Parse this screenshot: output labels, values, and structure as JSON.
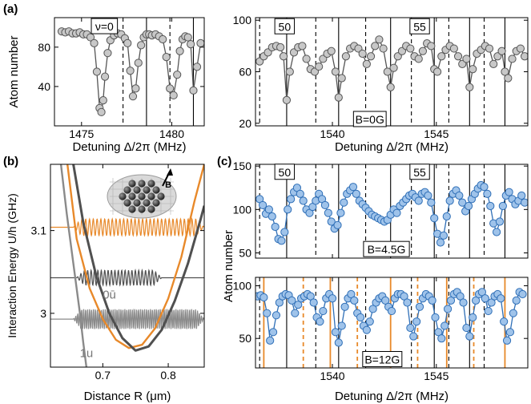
{
  "panel_labels": {
    "a": "(a)",
    "b": "(b)",
    "c": "(c)"
  },
  "colors": {
    "gray_marker": "#c8c8c8",
    "blue_marker": "#9fc3ea",
    "blue_line": "#2f6fb7",
    "orange": "#e8892a",
    "dark_curve": "#505050",
    "mid_curve": "#8a8a8a"
  },
  "chart_data": [
    {
      "id": "a_left",
      "type": "scatter",
      "xlim": [
        1473.5,
        1481.8
      ],
      "ylim": [
        0,
        110
      ],
      "xticks": [
        1475,
        1480
      ],
      "yticks": [
        40,
        80
      ],
      "ylabel": "Atom number",
      "xlabel": "Detuning Δ/2π (MHz)",
      "annotations": [
        {
          "text": "ν=0",
          "x": 1476.0,
          "y": 101
        }
      ],
      "solid_lines": [
        1478.6,
        1481.2
      ],
      "dashed_lines": [
        1477.3,
        1479.9
      ],
      "x": [
        1473.9,
        1474.1,
        1474.3,
        1474.5,
        1474.7,
        1474.9,
        1475.1,
        1475.3,
        1475.5,
        1475.7,
        1475.85,
        1476.0,
        1476.1,
        1476.2,
        1476.3,
        1476.45,
        1476.6,
        1476.8,
        1477.0,
        1477.2,
        1477.4,
        1477.55,
        1477.7,
        1477.85,
        1478.0,
        1478.15,
        1478.3,
        1478.45,
        1478.6,
        1478.75,
        1478.9,
        1479.1,
        1479.3,
        1479.5,
        1479.7,
        1479.9,
        1480.1,
        1480.3,
        1480.45,
        1480.6,
        1480.75,
        1480.9,
        1481.05,
        1481.2,
        1481.4,
        1481.6
      ],
      "y": [
        96,
        95,
        96,
        94,
        94,
        95,
        93,
        93,
        90,
        84,
        55,
        18,
        14,
        26,
        50,
        74,
        87,
        92,
        94,
        93,
        89,
        84,
        56,
        30,
        38,
        64,
        82,
        90,
        93,
        93,
        92,
        93,
        91,
        88,
        70,
        38,
        31,
        52,
        76,
        88,
        91,
        90,
        83,
        36,
        60,
        84
      ]
    },
    {
      "id": "a_right",
      "type": "scatter",
      "xlim": [
        1536.3,
        1549.4
      ],
      "ylim": [
        18,
        102
      ],
      "xticks": [
        1540,
        1545
      ],
      "yticks": [
        20,
        60,
        100
      ],
      "xlabel": "Detuning Δ/2π (MHz)",
      "annotations": [
        {
          "text": "50",
          "x": 1537.7,
          "y": 95,
          "boxed": true
        },
        {
          "text": "55",
          "x": 1544.2,
          "y": 95,
          "boxed": true
        },
        {
          "text": "B=0G",
          "x": 1541.8,
          "y": 23,
          "boxed": true
        }
      ],
      "solid_lines": [
        1537.8,
        1540.3,
        1542.8,
        1544.9,
        1546.6,
        1548.3
      ],
      "dashed_lines": [
        1536.5,
        1539.2,
        1541.6,
        1543.8,
        1545.6,
        1547.3
      ],
      "x": [
        1536.5,
        1536.7,
        1536.9,
        1537.1,
        1537.3,
        1537.5,
        1537.65,
        1537.8,
        1537.95,
        1538.15,
        1538.35,
        1538.55,
        1538.75,
        1538.95,
        1539.15,
        1539.35,
        1539.55,
        1539.75,
        1539.95,
        1540.15,
        1540.3,
        1540.45,
        1540.65,
        1540.85,
        1541.05,
        1541.25,
        1541.45,
        1541.65,
        1541.85,
        1542.05,
        1542.25,
        1542.45,
        1542.65,
        1542.8,
        1542.95,
        1543.15,
        1543.35,
        1543.55,
        1543.75,
        1543.95,
        1544.15,
        1544.35,
        1544.55,
        1544.75,
        1544.9,
        1545.05,
        1545.25,
        1545.45,
        1545.65,
        1545.85,
        1546.05,
        1546.25,
        1546.45,
        1546.6,
        1546.75,
        1546.95,
        1547.15,
        1547.35,
        1547.55,
        1547.75,
        1547.95,
        1548.15,
        1548.3,
        1548.45,
        1548.65,
        1548.85,
        1549.05,
        1549.25
      ],
      "y": [
        68,
        72,
        75,
        79,
        80,
        79,
        72,
        38,
        60,
        75,
        79,
        80,
        70,
        62,
        60,
        64,
        70,
        74,
        76,
        60,
        40,
        55,
        72,
        78,
        80,
        78,
        74,
        66,
        72,
        80,
        85,
        78,
        60,
        48,
        63,
        72,
        76,
        80,
        78,
        72,
        70,
        76,
        82,
        80,
        62,
        60,
        72,
        77,
        80,
        78,
        72,
        66,
        70,
        48,
        62,
        74,
        77,
        80,
        78,
        66,
        72,
        76,
        60,
        55,
        70,
        76,
        78,
        72
      ]
    },
    {
      "id": "b",
      "type": "line",
      "xlim": [
        0.62,
        0.855
      ],
      "ylim": [
        2.935,
        3.18
      ],
      "xticks": [
        0.7,
        0.8
      ],
      "yticks": [
        3.0,
        3.1
      ],
      "ylabel": "Interaction Energy U/h (GHz)",
      "xlabel": "Distance R (μm)",
      "labels": [
        {
          "text": "0ū",
          "x": 0.71,
          "y": 3.018
        },
        {
          "text": "1u",
          "x": 0.675,
          "y": 2.947
        },
        {
          "text": "B",
          "x": 0.8,
          "y": 3.152
        }
      ],
      "levels": [
        3.104,
        3.043,
        2.993
      ],
      "series": [
        {
          "color": "orange",
          "x": [
            0.646,
            0.66,
            0.68,
            0.7,
            0.72,
            0.74,
            0.76,
            0.78,
            0.8,
            0.82,
            0.84,
            0.855
          ],
          "y": [
            3.18,
            3.09,
            3.03,
            2.993,
            2.968,
            2.958,
            2.962,
            2.982,
            3.018,
            3.068,
            3.135,
            3.18
          ]
        },
        {
          "color": "dark",
          "x": [
            0.655,
            0.67,
            0.69,
            0.71,
            0.73,
            0.75,
            0.77,
            0.79,
            0.81,
            0.83,
            0.85,
            0.855
          ],
          "y": [
            3.18,
            3.11,
            3.045,
            3.0,
            2.97,
            2.955,
            2.96,
            2.98,
            3.015,
            3.06,
            3.115,
            3.13
          ]
        },
        {
          "color": "gray",
          "x": [
            0.636,
            0.645,
            0.655,
            0.665,
            0.67,
            0.675
          ],
          "y": [
            3.18,
            3.12,
            3.06,
            3.0,
            2.965,
            2.935
          ]
        }
      ]
    },
    {
      "id": "c_top",
      "type": "line",
      "xlim": [
        1536.3,
        1549.4
      ],
      "ylim": [
        44,
        152
      ],
      "xticks": [
        1540,
        1545
      ],
      "yticks": [
        50,
        100,
        150
      ],
      "annotations": [
        {
          "text": "50",
          "x": 1537.7,
          "y": 143,
          "boxed": true
        },
        {
          "text": "55",
          "x": 1544.2,
          "y": 143,
          "boxed": true
        },
        {
          "text": "B=4.5G",
          "x": 1542.6,
          "y": 54,
          "boxed": true
        }
      ],
      "solid_lines": [
        1537.8,
        1540.3,
        1542.8,
        1544.9,
        1546.6,
        1548.3
      ],
      "dashed_lines": [
        1536.5,
        1539.2,
        1541.6,
        1543.8,
        1545.6,
        1547.3
      ],
      "x": [
        1536.5,
        1536.65,
        1536.8,
        1536.95,
        1537.1,
        1537.25,
        1537.4,
        1537.55,
        1537.7,
        1537.85,
        1538.0,
        1538.15,
        1538.3,
        1538.45,
        1538.6,
        1538.75,
        1538.9,
        1539.05,
        1539.2,
        1539.35,
        1539.5,
        1539.65,
        1539.8,
        1539.95,
        1540.1,
        1540.25,
        1540.4,
        1540.55,
        1540.7,
        1540.85,
        1541.0,
        1541.15,
        1541.3,
        1541.45,
        1541.6,
        1541.75,
        1541.9,
        1542.05,
        1542.2,
        1542.35,
        1542.5,
        1542.65,
        1542.8,
        1542.95,
        1543.1,
        1543.25,
        1543.4,
        1543.55,
        1543.7,
        1543.85,
        1544.0,
        1544.15,
        1544.3,
        1544.45,
        1544.6,
        1544.75,
        1544.9,
        1545.05,
        1545.2,
        1545.35,
        1545.5,
        1545.65,
        1545.8,
        1545.95,
        1546.1,
        1546.25,
        1546.4,
        1546.55,
        1546.7,
        1546.85,
        1547.0,
        1547.15,
        1547.3,
        1547.45,
        1547.6,
        1547.75,
        1547.9,
        1548.05,
        1548.2,
        1548.35,
        1548.5,
        1548.65,
        1548.8,
        1548.95,
        1549.1,
        1549.25
      ],
      "y": [
        112,
        105,
        95,
        100,
        92,
        80,
        66,
        64,
        74,
        100,
        112,
        120,
        125,
        118,
        110,
        100,
        96,
        103,
        110,
        118,
        112,
        105,
        96,
        86,
        78,
        82,
        96,
        108,
        118,
        122,
        126,
        118,
        110,
        106,
        102,
        98,
        94,
        92,
        90,
        88,
        86,
        88,
        94,
        100,
        96,
        104,
        108,
        112,
        116,
        118,
        114,
        110,
        118,
        120,
        116,
        108,
        90,
        72,
        62,
        70,
        92,
        110,
        118,
        122,
        116,
        108,
        98,
        104,
        112,
        118,
        124,
        128,
        126,
        118,
        104,
        84,
        74,
        86,
        104,
        116,
        120,
        112,
        106,
        110,
        116,
        108
      ]
    },
    {
      "id": "c_bottom",
      "type": "line",
      "xlim": [
        1536.3,
        1549.4
      ],
      "ylim": [
        22,
        108
      ],
      "xticks": [
        1540,
        1545
      ],
      "yticks": [
        50,
        100
      ],
      "ylabel": "Atom number",
      "xlabel": "Detuning Δ/2π (MHz)",
      "annotations": [
        {
          "text": "B=12G",
          "x": 1542.4,
          "y": 30,
          "boxed": true
        }
      ],
      "orange_solid": [
        1536.7,
        1539.9,
        1542.8,
        1545.5,
        1548.3
      ],
      "orange_dashed": [
        1538.6,
        1541.2,
        1544.1,
        1546.8
      ],
      "black_solid": [
        1537.8,
        1540.3,
        1542.8,
        1544.9,
        1546.6,
        1548.3
      ],
      "black_dashed": [
        1536.5,
        1539.2,
        1541.6,
        1543.8,
        1545.6,
        1547.3
      ],
      "x": [
        1536.4,
        1536.55,
        1536.7,
        1536.85,
        1537.0,
        1537.15,
        1537.3,
        1537.45,
        1537.6,
        1537.75,
        1537.9,
        1538.05,
        1538.2,
        1538.35,
        1538.5,
        1538.65,
        1538.8,
        1538.95,
        1539.1,
        1539.25,
        1539.4,
        1539.55,
        1539.7,
        1539.85,
        1540.0,
        1540.15,
        1540.3,
        1540.45,
        1540.6,
        1540.75,
        1540.9,
        1541.05,
        1541.2,
        1541.35,
        1541.5,
        1541.65,
        1541.8,
        1541.95,
        1542.1,
        1542.25,
        1542.4,
        1542.55,
        1542.7,
        1542.85,
        1543.0,
        1543.15,
        1543.3,
        1543.45,
        1543.6,
        1543.75,
        1543.9,
        1544.05,
        1544.2,
        1544.35,
        1544.5,
        1544.65,
        1544.8,
        1544.95,
        1545.1,
        1545.25,
        1545.4,
        1545.55,
        1545.7,
        1545.85,
        1546.0,
        1546.15,
        1546.3,
        1546.45,
        1546.6,
        1546.75,
        1546.9,
        1547.05,
        1547.2,
        1547.35,
        1547.5,
        1547.65,
        1547.8,
        1547.95,
        1548.1,
        1548.25,
        1548.4,
        1548.55,
        1548.7,
        1548.85,
        1549.0,
        1549.15
      ],
      "y": [
        90,
        91,
        89,
        74,
        48,
        56,
        72,
        84,
        90,
        92,
        91,
        86,
        74,
        82,
        88,
        90,
        92,
        90,
        84,
        70,
        66,
        76,
        88,
        92,
        88,
        56,
        46,
        62,
        80,
        88,
        92,
        86,
        74,
        70,
        62,
        58,
        66,
        78,
        84,
        88,
        90,
        86,
        80,
        76,
        88,
        92,
        92,
        90,
        84,
        60,
        52,
        66,
        80,
        88,
        92,
        90,
        86,
        70,
        56,
        50,
        62,
        78,
        86,
        92,
        94,
        90,
        84,
        60,
        52,
        70,
        86,
        92,
        94,
        88,
        76,
        84,
        90,
        92,
        88,
        66,
        48,
        56,
        74,
        86,
        94,
        92
      ]
    }
  ]
}
